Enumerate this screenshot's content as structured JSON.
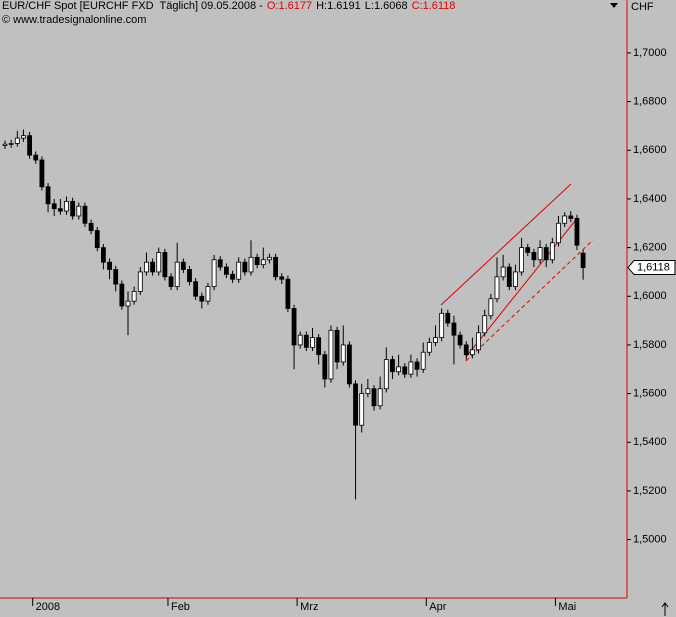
{
  "chart_data": {
    "type": "candlestick",
    "title": "EUR/CHF Spot [EURCHF FXD  Täglich] 09.05.2008 -",
    "open_label": "O:1.6177",
    "high_label": "H:1.6191",
    "low_label": "L:1.6068",
    "close_label": "C:1.6118",
    "copyright": "© www.tradesignalonline.com",
    "currency": "CHF",
    "last_price_label": "1,6118",
    "categories": [
      null,
      null,
      null,
      null,
      null,
      "2008",
      null,
      null,
      null,
      null,
      null,
      null,
      null,
      null,
      null,
      null,
      null,
      null,
      null,
      null,
      null,
      null,
      null,
      null,
      null,
      null,
      null,
      "Feb",
      null,
      null,
      null,
      null,
      null,
      null,
      null,
      null,
      null,
      null,
      null,
      null,
      null,
      null,
      null,
      null,
      null,
      null,
      null,
      null,
      "Mrz",
      null,
      null,
      null,
      null,
      null,
      null,
      null,
      null,
      null,
      null,
      null,
      null,
      null,
      null,
      null,
      null,
      null,
      null,
      null,
      null,
      "Apr",
      null,
      null,
      null,
      null,
      null,
      null,
      null,
      null,
      null,
      null,
      null,
      null,
      null,
      null,
      null,
      null,
      null,
      null,
      null,
      null,
      "Mai",
      null,
      null,
      null,
      null
    ],
    "open": [
      1.662,
      1.6625,
      1.6628,
      1.665,
      1.666,
      1.658,
      1.656,
      1.645,
      1.638,
      1.636,
      1.635,
      1.639,
      1.633,
      1.637,
      1.63,
      1.627,
      1.62,
      1.614,
      1.611,
      1.605,
      1.596,
      1.598,
      1.602,
      1.61,
      1.614,
      1.61,
      1.618,
      1.608,
      1.604,
      1.614,
      1.611,
      1.606,
      1.6,
      1.598,
      1.604,
      1.615,
      1.612,
      1.609,
      1.607,
      1.614,
      1.61,
      1.616,
      1.613,
      1.615,
      1.616,
      1.608,
      1.607,
      1.595,
      1.58,
      1.584,
      1.579,
      1.583,
      1.576,
      1.566,
      1.586,
      1.573,
      1.58,
      1.564,
      1.547,
      1.56,
      1.562,
      1.555,
      1.562,
      1.574,
      1.569,
      1.571,
      1.568,
      1.573,
      1.57,
      1.577,
      1.581,
      1.583,
      1.593,
      1.589,
      1.584,
      1.58,
      1.576,
      1.578,
      1.585,
      1.592,
      1.599,
      1.608,
      1.612,
      1.604,
      1.61,
      1.62,
      1.618,
      1.615,
      1.62,
      1.615,
      1.622,
      1.63,
      1.633,
      1.632,
      1.6177
    ],
    "high": [
      1.664,
      1.6643,
      1.668,
      1.6685,
      1.6675,
      1.6595,
      1.6575,
      1.6465,
      1.64,
      1.64,
      1.641,
      1.6405,
      1.6385,
      1.6385,
      1.6315,
      1.6285,
      1.6215,
      1.6155,
      1.6125,
      1.6065,
      1.602,
      1.604,
      1.612,
      1.618,
      1.6155,
      1.62,
      1.6195,
      1.6095,
      1.622,
      1.6155,
      1.6125,
      1.6075,
      1.6015,
      1.6055,
      1.617,
      1.6165,
      1.6135,
      1.6105,
      1.616,
      1.6155,
      1.623,
      1.6175,
      1.62,
      1.6175,
      1.6175,
      1.6095,
      1.6085,
      1.5965,
      1.5855,
      1.5855,
      1.587,
      1.5845,
      1.5775,
      1.588,
      1.5875,
      1.588,
      1.5815,
      1.5655,
      1.564,
      1.566,
      1.5635,
      1.567,
      1.579,
      1.5755,
      1.576,
      1.5725,
      1.576,
      1.5745,
      1.581,
      1.583,
      1.588,
      1.595,
      1.5945,
      1.592,
      1.5855,
      1.5815,
      1.583,
      1.588,
      1.5945,
      1.601,
      1.616,
      1.617,
      1.6135,
      1.613,
      1.624,
      1.6215,
      1.6195,
      1.623,
      1.6215,
      1.624,
      1.633,
      1.6345,
      1.635,
      1.6335,
      1.6191
    ],
    "low": [
      1.6605,
      1.661,
      1.6615,
      1.6635,
      1.6565,
      1.6545,
      1.6435,
      1.6345,
      1.633,
      1.6335,
      1.6335,
      1.6315,
      1.6315,
      1.6285,
      1.6255,
      1.6185,
      1.611,
      1.607,
      1.602,
      1.5945,
      1.584,
      1.5965,
      1.6005,
      1.6085,
      1.6085,
      1.6085,
      1.6065,
      1.6025,
      1.6025,
      1.6095,
      1.6045,
      1.5985,
      1.595,
      1.5965,
      1.6025,
      1.6105,
      1.6075,
      1.6055,
      1.6055,
      1.6085,
      1.6085,
      1.6115,
      1.6115,
      1.6135,
      1.6065,
      1.605,
      1.5935,
      1.57,
      1.5785,
      1.5775,
      1.5775,
      1.572,
      1.5625,
      1.5645,
      1.57,
      1.5715,
      1.5625,
      1.5165,
      1.544,
      1.5585,
      1.553,
      1.5535,
      1.5605,
      1.566,
      1.5675,
      1.5665,
      1.5665,
      1.567,
      1.5685,
      1.5755,
      1.5795,
      1.5815,
      1.5875,
      1.572,
      1.5785,
      1.574,
      1.5745,
      1.5765,
      1.5835,
      1.5905,
      1.5975,
      1.6065,
      1.6025,
      1.6025,
      1.6085,
      1.6165,
      1.612,
      1.6135,
      1.612,
      1.6135,
      1.6205,
      1.6285,
      1.6305,
      1.619,
      1.6068
    ],
    "close": [
      1.6625,
      1.6628,
      1.665,
      1.666,
      1.658,
      1.656,
      1.645,
      1.638,
      1.636,
      1.635,
      1.639,
      1.633,
      1.637,
      1.63,
      1.627,
      1.62,
      1.614,
      1.611,
      1.605,
      1.596,
      1.598,
      1.602,
      1.61,
      1.614,
      1.61,
      1.618,
      1.608,
      1.604,
      1.614,
      1.611,
      1.606,
      1.6,
      1.598,
      1.604,
      1.615,
      1.612,
      1.609,
      1.607,
      1.614,
      1.61,
      1.616,
      1.613,
      1.615,
      1.616,
      1.608,
      1.607,
      1.595,
      1.58,
      1.584,
      1.579,
      1.583,
      1.576,
      1.566,
      1.586,
      1.573,
      1.58,
      1.564,
      1.547,
      1.56,
      1.562,
      1.555,
      1.562,
      1.574,
      1.569,
      1.571,
      1.568,
      1.573,
      1.57,
      1.577,
      1.581,
      1.583,
      1.593,
      1.589,
      1.584,
      1.58,
      1.576,
      1.578,
      1.585,
      1.592,
      1.599,
      1.608,
      1.612,
      1.604,
      1.61,
      1.62,
      1.618,
      1.615,
      1.62,
      1.615,
      1.622,
      1.63,
      1.633,
      1.632,
      1.621,
      1.6118
    ],
    "ylim": [
      1.476,
      1.716
    ],
    "yticks": [
      {
        "value": 1.5,
        "label": "1,5000"
      },
      {
        "value": 1.52,
        "label": "1,5200"
      },
      {
        "value": 1.54,
        "label": "1,5400"
      },
      {
        "value": 1.56,
        "label": "1,5600"
      },
      {
        "value": 1.58,
        "label": "1,5800"
      },
      {
        "value": 1.6,
        "label": "1,6000"
      },
      {
        "value": 1.62,
        "label": "1,6200"
      },
      {
        "value": 1.64,
        "label": "1,6400"
      },
      {
        "value": 1.66,
        "label": "1,6600"
      },
      {
        "value": 1.68,
        "label": "1,6800"
      },
      {
        "value": 1.7,
        "label": "1,7000"
      }
    ],
    "up_color": "#ffffff",
    "down_color": "#000000",
    "axis_color": "#e00000"
  }
}
